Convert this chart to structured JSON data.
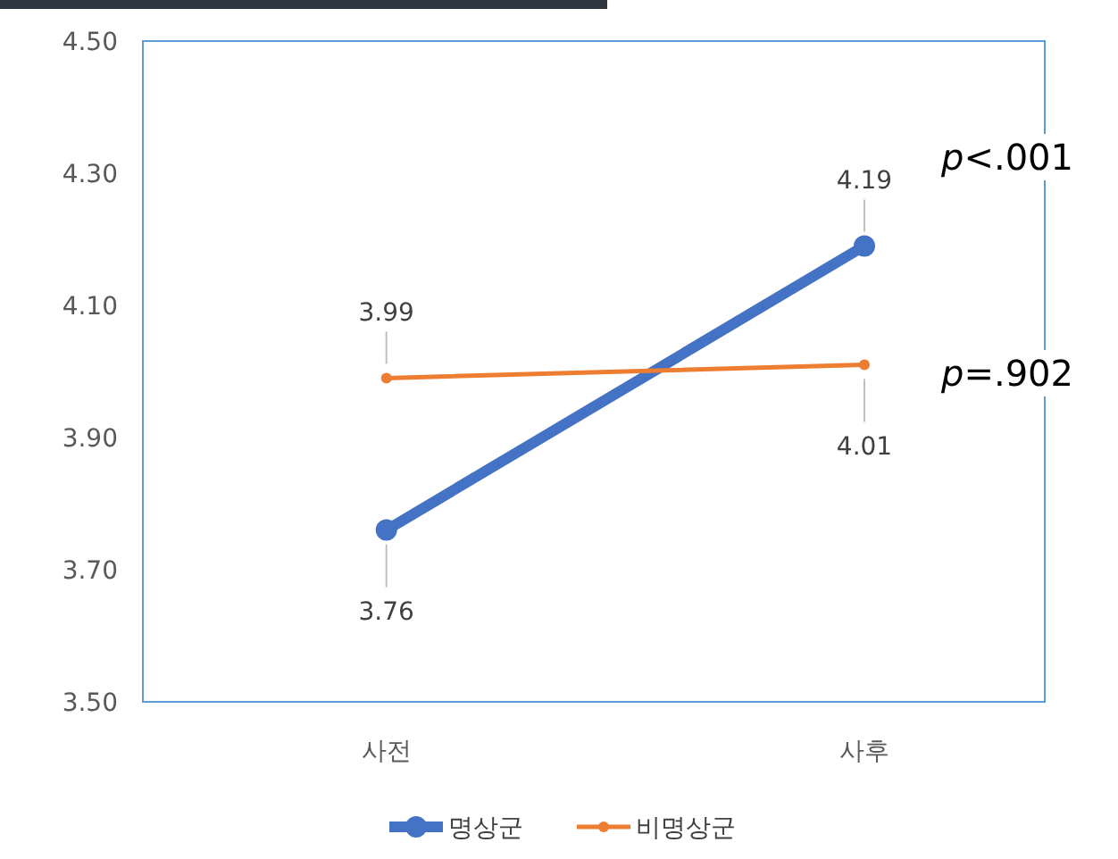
{
  "chart_data": {
    "type": "line",
    "categories": [
      "사전",
      "사후"
    ],
    "series": [
      {
        "name": "명상군",
        "color": "#4472c4",
        "values": [
          3.76,
          4.19
        ]
      },
      {
        "name": "비명상군",
        "color": "#ed7d31",
        "values": [
          3.99,
          4.01
        ]
      }
    ],
    "ylim": [
      3.5,
      4.5
    ],
    "yticks": [
      "3.50",
      "3.70",
      "3.90",
      "4.10",
      "4.30",
      "4.50"
    ],
    "data_labels": true,
    "legend": "bottom",
    "grid": false,
    "marker": "circle",
    "line_style": "solid",
    "annotations": [
      "p<.001",
      "p=.902"
    ]
  }
}
